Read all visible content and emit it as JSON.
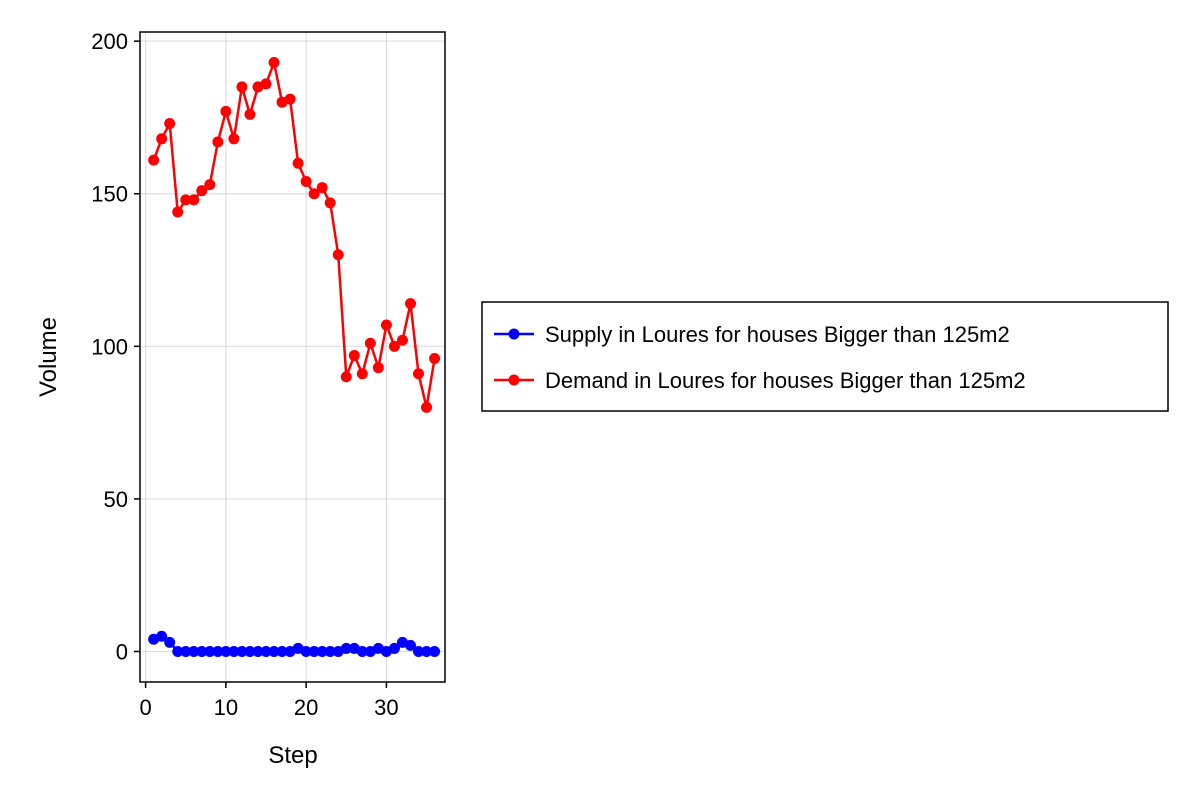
{
  "chart_data": {
    "type": "line",
    "title": "",
    "xlabel": "Step",
    "ylabel": "Volume",
    "xlim": [
      -0.7,
      37.3
    ],
    "ylim": [
      -10,
      203
    ],
    "xticks": [
      0,
      10,
      20,
      30
    ],
    "yticks": [
      0,
      50,
      100,
      150,
      200
    ],
    "grid": true,
    "legend_position": "right",
    "x": [
      1,
      2,
      3,
      4,
      5,
      6,
      7,
      8,
      9,
      10,
      11,
      12,
      13,
      14,
      15,
      16,
      17,
      18,
      19,
      20,
      21,
      22,
      23,
      24,
      25,
      26,
      27,
      28,
      29,
      30,
      31,
      32,
      33,
      34,
      35,
      36
    ],
    "series": [
      {
        "name": "Supply in Loures for houses Bigger than 125m2",
        "color": "#0000ff",
        "values": [
          4,
          5,
          3,
          0,
          0,
          0,
          0,
          0,
          0,
          0,
          0,
          0,
          0,
          0,
          0,
          0,
          0,
          0,
          1,
          0,
          0,
          0,
          0,
          0,
          1,
          1,
          0,
          0,
          1,
          0,
          1,
          3,
          2,
          0,
          0,
          0
        ]
      },
      {
        "name": "Demand in Loures for houses Bigger than 125m2",
        "color": "#ff0000",
        "values": [
          161,
          168,
          173,
          144,
          148,
          148,
          151,
          153,
          167,
          177,
          168,
          185,
          176,
          185,
          186,
          193,
          180,
          181,
          160,
          154,
          150,
          152,
          147,
          130,
          90,
          97,
          91,
          101,
          93,
          107,
          100,
          102,
          114,
          91,
          80,
          96
        ]
      }
    ]
  }
}
